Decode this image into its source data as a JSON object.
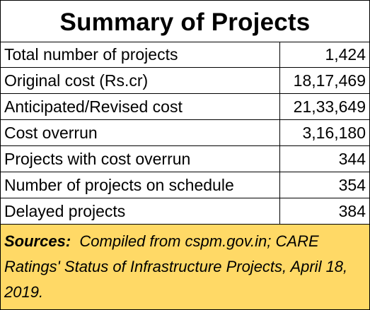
{
  "title": "Summary of Projects",
  "rows": [
    {
      "label": "Total number of projects",
      "value": "1,424"
    },
    {
      "label": "Original cost (Rs.cr)",
      "value": "18,17,469"
    },
    {
      "label": "Anticipated/Revised cost",
      "value": "21,33,649"
    },
    {
      "label": "Cost overrun",
      "value": "3,16,180"
    },
    {
      "label": "Projects with cost overrun",
      "value": "344"
    },
    {
      "label": "Number of projects on schedule",
      "value": "354"
    },
    {
      "label": "Delayed projects",
      "value": "384"
    }
  ],
  "sources": {
    "label": "Sources:",
    "text": "Compiled from cspm.gov.in; CARE Ratings' Status of Infrastructure Projects, April 18, 2019."
  },
  "colors": {
    "sources_background": "#ffd966",
    "border": "#000000"
  }
}
